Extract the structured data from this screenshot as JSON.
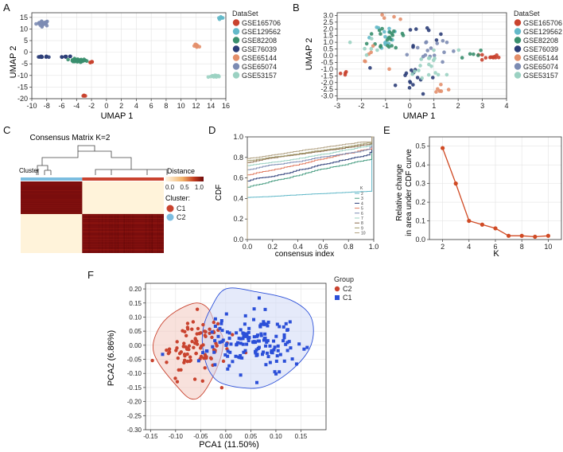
{
  "colors": {
    "GSE165706": "#c9432f",
    "GSE129562": "#63b9c9",
    "GSE82208": "#3a8f6e",
    "GSE76039": "#2c3e78",
    "GSE65144": "#e38f6b",
    "GSE65074": "#7c8bb2",
    "GSE53157": "#9bd1c2",
    "C1": "#2b4fd8",
    "C2": "#c9432f",
    "heat_dark": "#7a0d0d",
    "heat_light": "#fff3da",
    "c1_bar": "#c9432f",
    "c2_bar": "#7bbde0"
  },
  "chart_data": [
    {
      "id": "A",
      "type": "scatter",
      "panel_label": "A",
      "xlabel": "UMAP 1",
      "ylabel": "UMAP 2",
      "xlim": [
        -10,
        16
      ],
      "ylim": [
        -20,
        17
      ],
      "xticks": [
        "-10",
        "-8",
        "-6",
        "-4",
        "-2",
        "0",
        "2",
        "4",
        "6",
        "8",
        "10",
        "12",
        "14",
        "16"
      ],
      "xtick_values": [
        -10,
        -8,
        -6,
        -4,
        -2,
        0,
        2,
        4,
        6,
        8,
        10,
        12,
        14,
        16
      ],
      "yticks": [
        "-20",
        "-15",
        "-10",
        "-5",
        "0",
        "5",
        "10",
        "15"
      ],
      "ytick_values": [
        -20,
        -15,
        -10,
        -5,
        0,
        5,
        10,
        15
      ],
      "legend_title": "DataSet",
      "legend": [
        "GSE165706",
        "GSE129562",
        "GSE82208",
        "GSE76039",
        "GSE65144",
        "GSE65074",
        "GSE53157"
      ],
      "clusters": [
        {
          "series": "GSE65074",
          "cx": -8.5,
          "cy": 12.5,
          "sx": 0.45,
          "sy": 0.6,
          "n": 24
        },
        {
          "series": "GSE129562",
          "cx": 15.4,
          "cy": 14.6,
          "sx": 0.2,
          "sy": 0.3,
          "n": 6
        },
        {
          "series": "GSE76039",
          "cx": -8.3,
          "cy": -2.0,
          "sx": 0.4,
          "sy": 0.15,
          "n": 10
        },
        {
          "series": "GSE76039",
          "cx": -5.4,
          "cy": -2.0,
          "sx": 0.35,
          "sy": 0.15,
          "n": 8
        },
        {
          "series": "GSE82208",
          "cx": -3.9,
          "cy": -3.6,
          "sx": 0.6,
          "sy": 0.35,
          "n": 34
        },
        {
          "series": "GSE165706",
          "cx": -2.1,
          "cy": -4.1,
          "sx": 0.15,
          "sy": 0.3,
          "n": 5
        },
        {
          "series": "GSE165706",
          "cx": -3.0,
          "cy": -19.0,
          "sx": 0.12,
          "sy": 0.25,
          "n": 4
        },
        {
          "series": "GSE65144",
          "cx": 12.2,
          "cy": 2.6,
          "sx": 0.25,
          "sy": 0.35,
          "n": 8
        },
        {
          "series": "GSE53157",
          "cx": 14.5,
          "cy": -10.3,
          "sx": 0.45,
          "sy": 0.25,
          "n": 12
        }
      ]
    },
    {
      "id": "B",
      "type": "scatter",
      "panel_label": "B",
      "xlabel": "UMAP 1",
      "ylabel": "UMAP 2",
      "xlim": [
        -3,
        4
      ],
      "ylim": [
        -3.2,
        3.2
      ],
      "xticks": [
        "-3",
        "-2",
        "-1",
        "0",
        "1",
        "2",
        "3",
        "4"
      ],
      "xtick_values": [
        -3,
        -2,
        -1,
        0,
        1,
        2,
        3,
        4
      ],
      "yticks": [
        "-3.0",
        "-2.5",
        "-2.0",
        "-1.5",
        "-1.0",
        "-0.5",
        "0.0",
        "0.5",
        "1.0",
        "1.5",
        "2.0",
        "2.5",
        "3.0"
      ],
      "ytick_values": [
        -3,
        -2.5,
        -2,
        -1.5,
        -1,
        -0.5,
        0,
        0.5,
        1,
        1.5,
        2,
        2.5,
        3
      ],
      "legend_title": "DataSet",
      "legend": [
        "GSE165706",
        "GSE129562",
        "GSE82208",
        "GSE76039",
        "GSE65144",
        "GSE65074",
        "GSE53157"
      ],
      "clusters": [
        {
          "series": "GSE165706",
          "cx": 3.3,
          "cy": -0.1,
          "sx": 0.2,
          "sy": 0.15,
          "n": 12
        },
        {
          "series": "GSE165706",
          "cx": -2.75,
          "cy": -1.35,
          "sx": 0.08,
          "sy": 0.1,
          "n": 4
        },
        {
          "series": "GSE129562",
          "cx": -1.2,
          "cy": 1.5,
          "sx": 0.45,
          "sy": 0.55,
          "n": 14
        },
        {
          "series": "GSE82208",
          "cx": -0.8,
          "cy": 1.4,
          "sx": 0.45,
          "sy": 0.6,
          "n": 22
        },
        {
          "series": "GSE82208",
          "cx": 2.5,
          "cy": 0.1,
          "sx": 0.3,
          "sy": 0.2,
          "n": 5
        },
        {
          "series": "GSE76039",
          "cx": 0.1,
          "cy": -1.6,
          "sx": 0.5,
          "sy": 0.6,
          "n": 16
        },
        {
          "series": "GSE76039",
          "cx": 0.5,
          "cy": 1.8,
          "sx": 0.35,
          "sy": 0.5,
          "n": 8
        },
        {
          "series": "GSE65144",
          "cx": -1.8,
          "cy": -0.2,
          "sx": 0.35,
          "sy": 0.4,
          "n": 6
        },
        {
          "series": "GSE65144",
          "cx": 1.3,
          "cy": -2.6,
          "sx": 0.25,
          "sy": 0.2,
          "n": 6
        },
        {
          "series": "GSE65144",
          "cx": -0.6,
          "cy": 2.9,
          "sx": 0.3,
          "sy": 0.12,
          "n": 4
        },
        {
          "series": "GSE65074",
          "cx": 0.7,
          "cy": 0.5,
          "sx": 0.4,
          "sy": 0.6,
          "n": 16
        },
        {
          "series": "GSE53157",
          "cx": 0.9,
          "cy": -0.8,
          "sx": 0.55,
          "sy": 0.7,
          "n": 18
        },
        {
          "series": "GSE53157",
          "cx": -1.6,
          "cy": 0.9,
          "sx": 0.3,
          "sy": 0.4,
          "n": 6
        }
      ]
    },
    {
      "id": "C",
      "type": "heatmap",
      "panel_label": "C",
      "title": "Consensus Matrix K=2",
      "row_annotation_label": "Cluster",
      "legend_title": "Distance",
      "legend_ticks": [
        "0.0",
        "0.5",
        "1.0"
      ],
      "cluster_legend_title": "Cluster:",
      "clusters": [
        "C1",
        "C2"
      ],
      "c2_fraction": 0.43
    },
    {
      "id": "D",
      "type": "line",
      "panel_label": "D",
      "xlabel": "consensus index",
      "ylabel": "CDF",
      "xlim": [
        0,
        1
      ],
      "ylim": [
        0,
        1
      ],
      "xticks": [
        "0.0",
        "0.2",
        "0.4",
        "0.6",
        "0.8",
        "1.0"
      ],
      "xtick_values": [
        0,
        0.2,
        0.4,
        0.6,
        0.8,
        1.0
      ],
      "yticks": [
        "0.0",
        "0.2",
        "0.4",
        "0.6",
        "0.8",
        "1.0"
      ],
      "ytick_values": [
        0,
        0.2,
        0.4,
        0.6,
        0.8,
        1.0
      ],
      "legend_title": "K",
      "series": [
        {
          "name": "2",
          "start": 0.41,
          "end": 0.47,
          "color": "#63b9c9"
        },
        {
          "name": "3",
          "start": 0.51,
          "end": 0.78,
          "color": "#4a9e83"
        },
        {
          "name": "4",
          "start": 0.57,
          "end": 0.85,
          "color": "#2c3e78"
        },
        {
          "name": "5",
          "start": 0.63,
          "end": 0.88,
          "color": "#e07a5f"
        },
        {
          "name": "6",
          "start": 0.68,
          "end": 0.9,
          "color": "#7c8bb2"
        },
        {
          "name": "7",
          "start": 0.72,
          "end": 0.92,
          "color": "#9bd1c2"
        },
        {
          "name": "8",
          "start": 0.75,
          "end": 0.93,
          "color": "#8a6a4a"
        },
        {
          "name": "9",
          "start": 0.77,
          "end": 0.94,
          "color": "#a09a6a"
        },
        {
          "name": "10",
          "start": 0.79,
          "end": 0.95,
          "color": "#b0a080"
        }
      ]
    },
    {
      "id": "E",
      "type": "line",
      "panel_label": "E",
      "xlabel": "K",
      "ylabel": "Relative change in area under CDF curve",
      "ylabel_line1": "Relative change",
      "ylabel_line2": "in area under CDF curve",
      "xlim": [
        1,
        11
      ],
      "ylim": [
        0,
        0.55
      ],
      "xticks": [
        "2",
        "4",
        "6",
        "8",
        "10"
      ],
      "xtick_values": [
        2,
        4,
        6,
        8,
        10
      ],
      "yticks": [
        "0.0",
        "0.1",
        "0.2",
        "0.3",
        "0.4",
        "0.5"
      ],
      "ytick_values": [
        0,
        0.1,
        0.2,
        0.3,
        0.4,
        0.5
      ],
      "x": [
        2,
        3,
        4,
        5,
        6,
        7,
        8,
        9,
        10
      ],
      "values": [
        0.49,
        0.3,
        0.1,
        0.08,
        0.06,
        0.02,
        0.02,
        0.015,
        0.02
      ]
    },
    {
      "id": "F",
      "type": "scatter",
      "panel_label": "F",
      "xlabel": "PCA1 (11.50%)",
      "ylabel": "PCA2 (6.86%)",
      "xlim": [
        -0.16,
        0.2
      ],
      "ylim": [
        -0.3,
        0.22
      ],
      "xticks": [
        "-0.15",
        "-0.10",
        "-0.05",
        "0.00",
        "0.05",
        "0.10",
        "0.15"
      ],
      "xtick_values": [
        -0.15,
        -0.1,
        -0.05,
        0,
        0.05,
        0.1,
        0.15
      ],
      "yticks": [
        "-0.30",
        "-0.25",
        "-0.20",
        "-0.15",
        "-0.10",
        "-0.05",
        "0.00",
        "0.05",
        "0.10",
        "0.15",
        "0.20"
      ],
      "ytick_values": [
        -0.3,
        -0.25,
        -0.2,
        -0.15,
        -0.1,
        -0.05,
        0,
        0.05,
        0.1,
        0.15,
        0.2
      ],
      "legend_title": "Group",
      "legend": [
        "C2",
        "C1"
      ],
      "groups": [
        {
          "name": "C2",
          "cx": -0.065,
          "cy": -0.005,
          "sx": 0.032,
          "sy": 0.055,
          "n": 95,
          "hull": [
            [
              -0.06,
              0.15
            ],
            [
              -0.035,
              0.13
            ],
            [
              -0.02,
              0.07
            ],
            [
              -0.005,
              0.02
            ],
            [
              -0.015,
              -0.07
            ],
            [
              -0.045,
              -0.17
            ],
            [
              -0.07,
              -0.19
            ],
            [
              -0.1,
              -0.14
            ],
            [
              -0.135,
              -0.06
            ],
            [
              -0.145,
              0.0
            ],
            [
              -0.13,
              0.07
            ],
            [
              -0.1,
              0.12
            ]
          ]
        },
        {
          "name": "C1",
          "cx": 0.055,
          "cy": 0.01,
          "sx": 0.045,
          "sy": 0.05,
          "n": 150,
          "hull": [
            [
              0.0,
              0.2
            ],
            [
              0.06,
              0.19
            ],
            [
              0.13,
              0.16
            ],
            [
              0.17,
              0.1
            ],
            [
              0.17,
              0.0
            ],
            [
              0.13,
              -0.09
            ],
            [
              0.07,
              -0.15
            ],
            [
              0.0,
              -0.14
            ],
            [
              -0.03,
              -0.1
            ],
            [
              -0.045,
              -0.02
            ],
            [
              -0.045,
              0.06
            ],
            [
              -0.03,
              0.13
            ]
          ]
        }
      ]
    }
  ]
}
